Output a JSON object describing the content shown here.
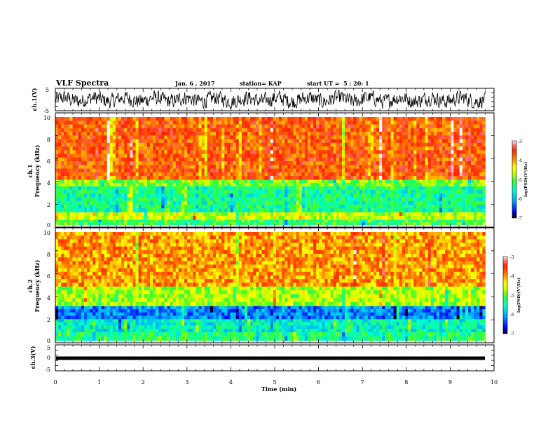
{
  "header": {
    "title": "VLF Spectra",
    "date": "Jan. 6 , 2017",
    "station": "station= KAP",
    "start_ut": "start UT =  5 : 20: 1"
  },
  "colors": {
    "trace": "#000000",
    "colormap": [
      "#000000",
      "#0000ff",
      "#00a0ff",
      "#00ffcc",
      "#33ff33",
      "#ccff00",
      "#ffff00",
      "#ff8800",
      "#ff2200",
      "#ff9090",
      "#ffffff"
    ]
  },
  "chart_data": [
    {
      "type": "line",
      "name": "ch1-waveform",
      "ylabel": "ch.1(V)",
      "ylim": [
        -5,
        5
      ],
      "y_ticklabels": [
        "5",
        "-5"
      ],
      "x_range_min": [
        0,
        9.8
      ],
      "description_values": "noisy waveform, amplitude roughly -4 to 4 V"
    },
    {
      "type": "heatmap",
      "name": "ch1-spectrogram",
      "ylabel": "ch.1\nFrequency (kHz)",
      "ylim": [
        0,
        10
      ],
      "y_ticklabels": [
        "0",
        "2",
        "4",
        "6",
        "8",
        "10"
      ],
      "colorbar": {
        "label": "log(PSD)(V²/Hz)",
        "range": [
          -7,
          -3
        ],
        "ticklabels": [
          "-3",
          "-4",
          "-5",
          "-6",
          "-7"
        ]
      },
      "bands_khz_to_logpsd": [
        {
          "f": [
            0,
            0.5
          ],
          "value": -5.2
        },
        {
          "f": [
            0.5,
            1.2
          ],
          "value": -4.6
        },
        {
          "f": [
            1.2,
            3.6
          ],
          "value": -5.4
        },
        {
          "f": [
            3.6,
            4.2
          ],
          "value": -4.9
        },
        {
          "f": [
            4.2,
            10
          ],
          "value": -3.7
        }
      ]
    },
    {
      "type": "heatmap",
      "name": "ch2-spectrogram",
      "ylabel": "ch.2\nFrequency (kHz)",
      "ylim": [
        0,
        10
      ],
      "y_ticklabels": [
        "0",
        "2",
        "4",
        "6",
        "8",
        "10"
      ],
      "colorbar": {
        "label": "log(PSD)(V²/Hz)",
        "range": [
          -7,
          -3
        ],
        "ticklabels": [
          "-3",
          "-4",
          "-5",
          "-6",
          "-7"
        ]
      },
      "bands_khz_to_logpsd": [
        {
          "f": [
            0,
            0.8
          ],
          "value": -5.3
        },
        {
          "f": [
            0.8,
            2.0
          ],
          "value": -5.6
        },
        {
          "f": [
            2.0,
            3.2
          ],
          "value": -6.2
        },
        {
          "f": [
            3.2,
            5.0
          ],
          "value": -4.7
        },
        {
          "f": [
            5.0,
            10
          ],
          "value": -4.0
        }
      ]
    },
    {
      "type": "line",
      "name": "ch3-waveform",
      "ylabel": "ch.3(V)",
      "ylim": [
        -5,
        5
      ],
      "y_ticklabels": [
        "5",
        "0",
        "-5"
      ],
      "value_v": -0.3
    }
  ],
  "x_axis": {
    "label": "Time (min)",
    "range": [
      0,
      10
    ],
    "ticklabels": [
      "0",
      "1",
      "2",
      "3",
      "4",
      "5",
      "6",
      "7",
      "8",
      "9",
      "10"
    ]
  }
}
